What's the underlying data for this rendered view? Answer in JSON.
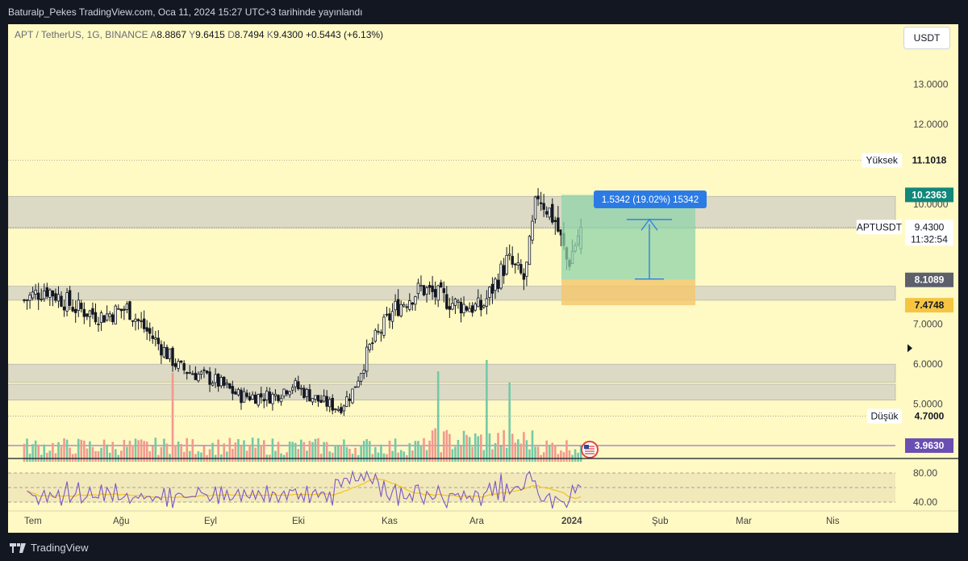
{
  "header": {
    "title": "Baturalp_Pekes TradingView.com, Oca 11, 2024 15:27 UTC+3 tarihinde yayınlandı"
  },
  "legend": {
    "symbol": "APT / TetherUS, 1G, BINANCE",
    "o_label": "A",
    "o": "8.8867",
    "h_label": "Y",
    "h": "9.6415",
    "l_label": "D",
    "l": "8.7494",
    "c_label": "K",
    "c": "9.4300",
    "change": "+0.5443 (+6.13%)"
  },
  "currency_button": "USDT",
  "footer": {
    "brand": "TradingView"
  },
  "colors": {
    "background": "#fff9c4",
    "candle": "#131722",
    "volume_up": "#74c9a8",
    "volume_down": "#f19a8e",
    "zone": "#d7d5c4",
    "profit_zone": "#8fd3a9",
    "loss_zone": "#f5c56b",
    "measure_blue": "#2c7be5",
    "rsi_line": "#7e57c2",
    "rsi_ma": "#f0c419",
    "line_level": "#7e57c2"
  },
  "chart_data": {
    "type": "candlestick",
    "title": "",
    "x_ticks": [
      "Tem",
      "Ağu",
      "Eyl",
      "Eki",
      "Kas",
      "Ara",
      "2024",
      "Şub",
      "Mar",
      "Nis"
    ],
    "y_ticks": [
      "13.0000",
      "12.0000",
      "10.0000",
      "7.0000",
      "6.0000",
      "5.0000"
    ],
    "ylim": [
      3.6,
      13.9
    ],
    "price_labels": {
      "high": {
        "text": "Yüksek",
        "value": "11.1018"
      },
      "zone_top": {
        "value": "10.2363"
      },
      "last": {
        "text": "APTUSDT",
        "value": "9.4300",
        "countdown": "11:32:54"
      },
      "zone_mid": {
        "value": "8.1089"
      },
      "stop": {
        "value": "7.4748"
      },
      "low": {
        "text": "Düşük",
        "value": "4.7000"
      },
      "line": {
        "value": "3.9630"
      }
    },
    "measure_label": "1.5342 (19.02%) 15342",
    "rsi_ticks": [
      "80.00",
      "40.00"
    ],
    "zones": [
      {
        "from": 9.4,
        "to": 10.2
      },
      {
        "from": 7.6,
        "to": 7.95
      },
      {
        "from": 5.55,
        "to": 6.0
      },
      {
        "from": 5.1,
        "to": 5.5
      }
    ],
    "anchor_points": [
      {
        "month": 0,
        "close": 7.6
      },
      {
        "month": 0.25,
        "close": 7.9
      },
      {
        "month": 0.6,
        "close": 7.4
      },
      {
        "month": 0.9,
        "close": 7.2
      },
      {
        "month": 1.2,
        "close": 7.4
      },
      {
        "month": 1.35,
        "close": 7.0
      },
      {
        "month": 1.6,
        "close": 6.4
      },
      {
        "month": 1.8,
        "close": 5.9
      },
      {
        "month": 2.2,
        "close": 5.6
      },
      {
        "month": 2.5,
        "close": 5.2
      },
      {
        "month": 2.9,
        "close": 5.2
      },
      {
        "month": 3.1,
        "close": 5.5
      },
      {
        "month": 3.4,
        "close": 5.1
      },
      {
        "month": 3.65,
        "close": 4.9
      },
      {
        "month": 3.8,
        "close": 5.3
      },
      {
        "month": 4.0,
        "close": 6.4
      },
      {
        "month": 4.3,
        "close": 7.4
      },
      {
        "month": 4.6,
        "close": 7.9
      },
      {
        "month": 5.0,
        "close": 7.5
      },
      {
        "month": 5.3,
        "close": 7.4
      },
      {
        "month": 5.6,
        "close": 8.6
      },
      {
        "month": 5.8,
        "close": 8.1
      },
      {
        "month": 5.95,
        "close": 10.3
      },
      {
        "month": 6.15,
        "close": 9.6
      },
      {
        "month": 6.3,
        "close": 8.5
      },
      {
        "month": 6.45,
        "close": 9.43
      }
    ]
  }
}
